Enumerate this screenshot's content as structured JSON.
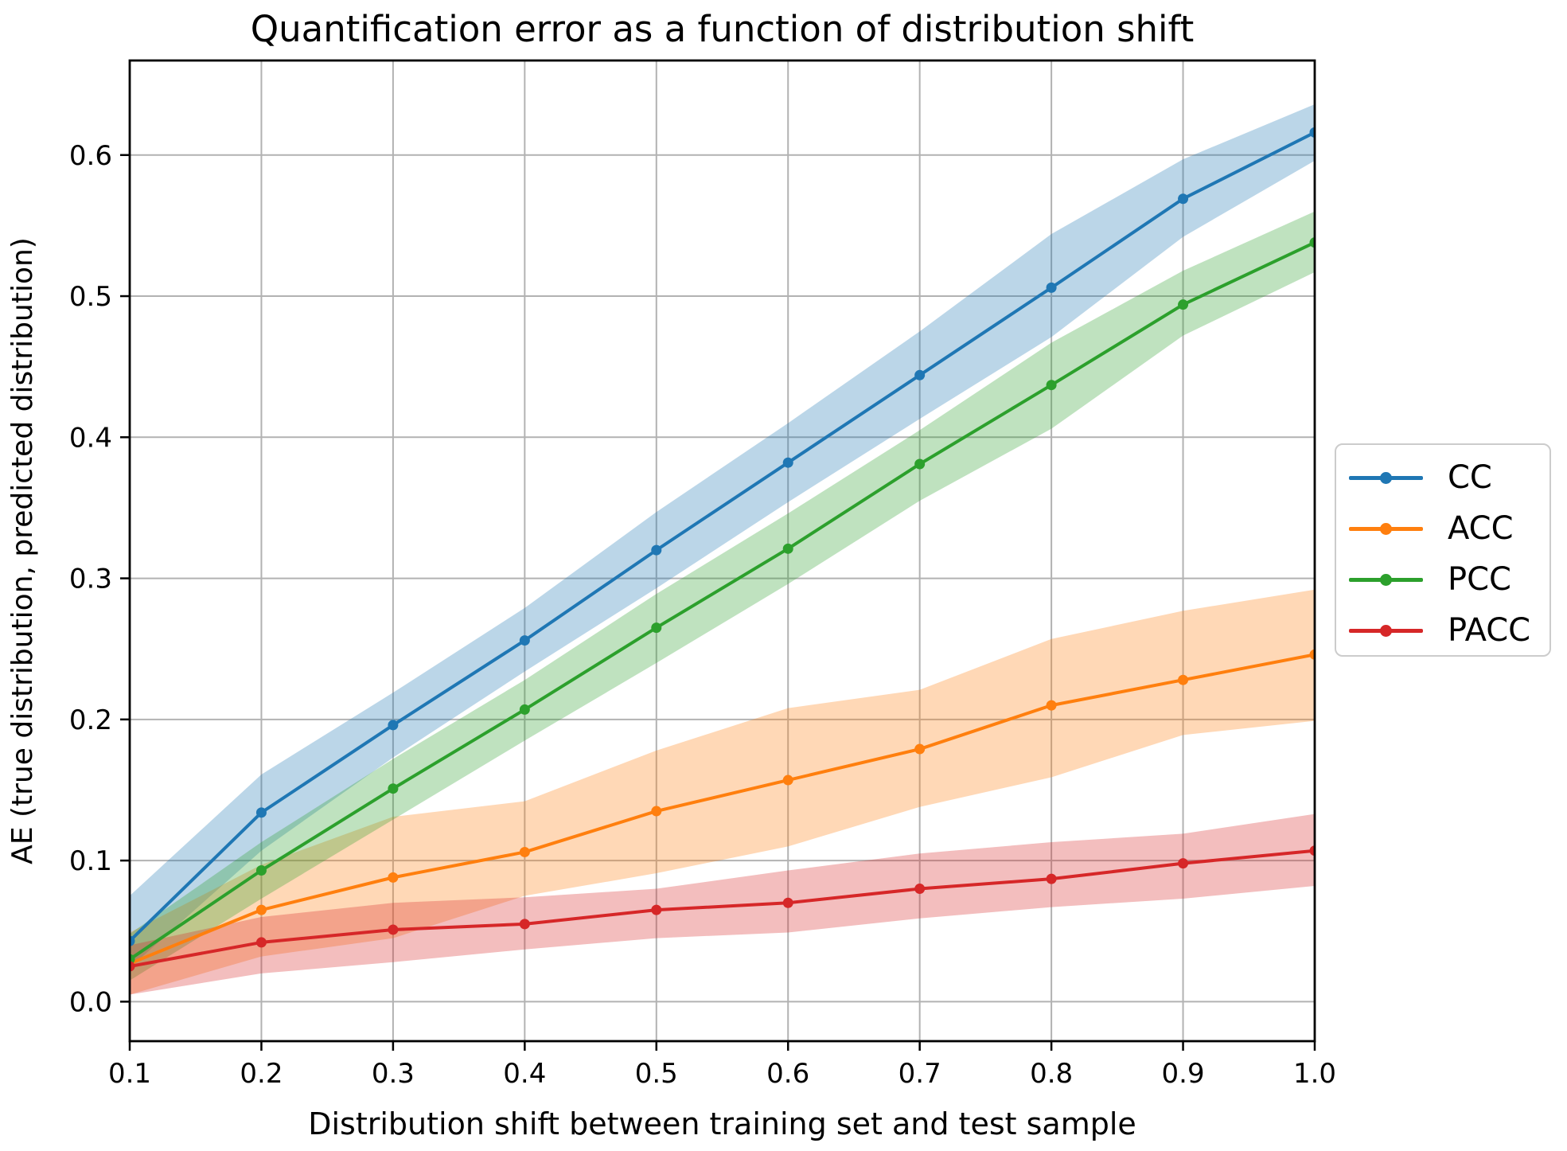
{
  "title": "Quantification error as a function of distribution shift",
  "chart_data": {
    "type": "line",
    "title": "Quantification error as a function of distribution shift",
    "xlabel": "Distribution shift between training set and test sample",
    "ylabel": "AE (true distribution, predicted distribution)",
    "x": [
      0.1,
      0.2,
      0.3,
      0.4,
      0.5,
      0.6,
      0.7,
      0.8,
      0.9,
      1.0
    ],
    "x_tick_labels": [
      "0.1",
      "0.2",
      "0.3",
      "0.4",
      "0.5",
      "0.6",
      "0.7",
      "0.8",
      "0.9",
      "1.0"
    ],
    "y_ticks": [
      0.0,
      0.1,
      0.2,
      0.3,
      0.4,
      0.5,
      0.6
    ],
    "y_tick_labels": [
      "0.0",
      "0.1",
      "0.2",
      "0.3",
      "0.4",
      "0.5",
      "0.6"
    ],
    "xlim": [
      0.1,
      1.0
    ],
    "ylim": [
      -0.028,
      0.667
    ],
    "grid": true,
    "grid_color": "#b2b2b2",
    "legend_position": "outside-center-right",
    "band_opacity": 0.3,
    "series": [
      {
        "name": "CC",
        "color": "#1f77b4",
        "values": [
          0.043,
          0.134,
          0.196,
          0.256,
          0.32,
          0.382,
          0.444,
          0.506,
          0.569,
          0.616
        ],
        "band_low": [
          0.024,
          0.107,
          0.173,
          0.234,
          0.293,
          0.354,
          0.413,
          0.471,
          0.542,
          0.596
        ],
        "band_high": [
          0.075,
          0.161,
          0.219,
          0.279,
          0.347,
          0.41,
          0.475,
          0.544,
          0.597,
          0.636
        ]
      },
      {
        "name": "ACC",
        "color": "#ff7f0e",
        "values": [
          0.027,
          0.065,
          0.088,
          0.106,
          0.135,
          0.157,
          0.179,
          0.21,
          0.228,
          0.246
        ],
        "band_low": [
          0.005,
          0.032,
          0.045,
          0.075,
          0.091,
          0.11,
          0.138,
          0.159,
          0.189,
          0.199
        ],
        "band_high": [
          0.049,
          0.097,
          0.131,
          0.142,
          0.178,
          0.208,
          0.221,
          0.257,
          0.277,
          0.292
        ]
      },
      {
        "name": "PCC",
        "color": "#2ca02c",
        "values": [
          0.03,
          0.093,
          0.151,
          0.207,
          0.265,
          0.321,
          0.381,
          0.437,
          0.494,
          0.538
        ],
        "band_low": [
          0.015,
          0.073,
          0.129,
          0.185,
          0.24,
          0.296,
          0.355,
          0.406,
          0.472,
          0.517
        ],
        "band_high": [
          0.048,
          0.113,
          0.172,
          0.228,
          0.289,
          0.346,
          0.405,
          0.467,
          0.518,
          0.56
        ]
      },
      {
        "name": "PACC",
        "color": "#d62728",
        "values": [
          0.025,
          0.042,
          0.051,
          0.055,
          0.065,
          0.07,
          0.08,
          0.087,
          0.098,
          0.107
        ],
        "band_low": [
          0.005,
          0.02,
          0.028,
          0.037,
          0.045,
          0.049,
          0.059,
          0.067,
          0.073,
          0.082
        ],
        "band_high": [
          0.04,
          0.06,
          0.07,
          0.074,
          0.08,
          0.093,
          0.105,
          0.113,
          0.119,
          0.133
        ]
      }
    ]
  },
  "legend": {
    "entries": [
      {
        "label": "CC",
        "color": "#1f77b4"
      },
      {
        "label": "ACC",
        "color": "#ff7f0e"
      },
      {
        "label": "PCC",
        "color": "#2ca02c"
      },
      {
        "label": "PACC",
        "color": "#d62728"
      }
    ]
  }
}
